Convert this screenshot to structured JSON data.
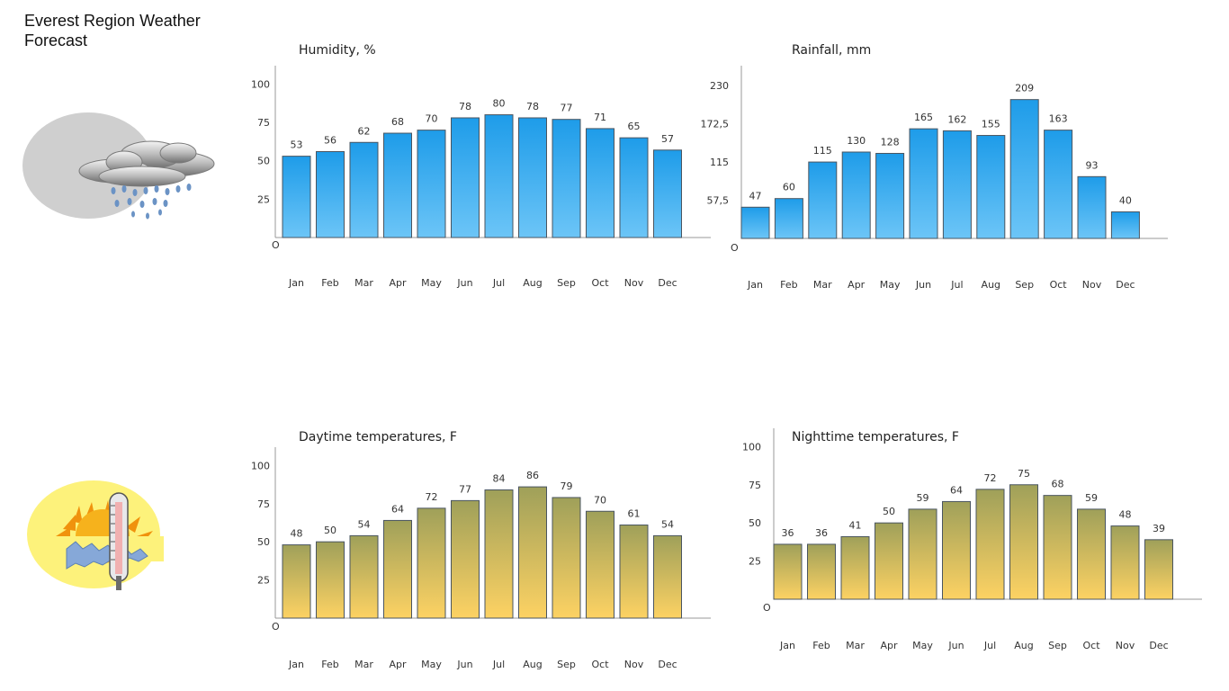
{
  "page": {
    "title": "Everest Region Weather Forecast"
  },
  "icons": {
    "top": "cloud-rain-icon",
    "bottom": "thermometer-sun-icon"
  },
  "colors": {
    "blue_top": "#1e9ce9",
    "blue_bottom": "#6cc5f7",
    "olive_top": "#9fa05a",
    "olive_bottom": "#fdd263",
    "bar_stroke": "#4a5560",
    "axis": "#999999"
  },
  "chart_data": [
    {
      "id": "humidity",
      "type": "bar",
      "title": "Humidity, %",
      "categories": [
        "Jan",
        "Feb",
        "Mar",
        "Apr",
        "May",
        "Jun",
        "Jul",
        "Aug",
        "Sep",
        "Oct",
        "Nov",
        "Dec"
      ],
      "values": [
        53,
        56,
        62,
        68,
        70,
        78,
        80,
        78,
        77,
        71,
        65,
        57
      ],
      "yticks": [
        "100",
        "75",
        "50",
        "25"
      ],
      "ytick_values": [
        100,
        75,
        50,
        25
      ],
      "zero_label": "O",
      "ylim": [
        0,
        112
      ],
      "palette": "blue",
      "grid": false
    },
    {
      "id": "rainfall",
      "type": "bar",
      "title": "Rainfall, mm",
      "categories": [
        "Jan",
        "Feb",
        "Mar",
        "Apr",
        "May",
        "Jun",
        "Jul",
        "Aug",
        "Sep",
        "Oct",
        "Nov",
        "Dec"
      ],
      "values": [
        47,
        60,
        115,
        130,
        128,
        165,
        162,
        155,
        209,
        163,
        93,
        40
      ],
      "yticks": [
        "230",
        "172,5",
        "115",
        "57,5"
      ],
      "ytick_values": [
        230,
        172.5,
        115,
        57.5
      ],
      "zero_label": "O",
      "ylim": [
        0,
        260
      ],
      "palette": "blue",
      "grid": false
    },
    {
      "id": "daytime",
      "type": "bar",
      "title": "Daytime temperatures, F",
      "categories": [
        "Jan",
        "Feb",
        "Mar",
        "Apr",
        "May",
        "Jun",
        "Jul",
        "Aug",
        "Sep",
        "Oct",
        "Nov",
        "Dec"
      ],
      "values": [
        48,
        50,
        54,
        64,
        72,
        77,
        84,
        86,
        79,
        70,
        61,
        54
      ],
      "yticks": [
        "100",
        "75",
        "50",
        "25"
      ],
      "ytick_values": [
        100,
        75,
        50,
        25
      ],
      "zero_label": "O",
      "ylim": [
        0,
        112
      ],
      "palette": "olive",
      "grid": false
    },
    {
      "id": "nighttime",
      "type": "bar",
      "title": "Nighttime temperatures, F",
      "categories": [
        "Jan",
        "Feb",
        "Mar",
        "Apr",
        "May",
        "Jun",
        "Jul",
        "Aug",
        "Sep",
        "Oct",
        "Nov",
        "Dec"
      ],
      "values": [
        36,
        36,
        41,
        50,
        59,
        64,
        72,
        75,
        68,
        59,
        48,
        39
      ],
      "yticks": [
        "100",
        "75",
        "50",
        "25"
      ],
      "ytick_values": [
        100,
        75,
        50,
        25
      ],
      "zero_label": "O",
      "ylim": [
        0,
        112
      ],
      "palette": "olive",
      "grid": false
    }
  ]
}
